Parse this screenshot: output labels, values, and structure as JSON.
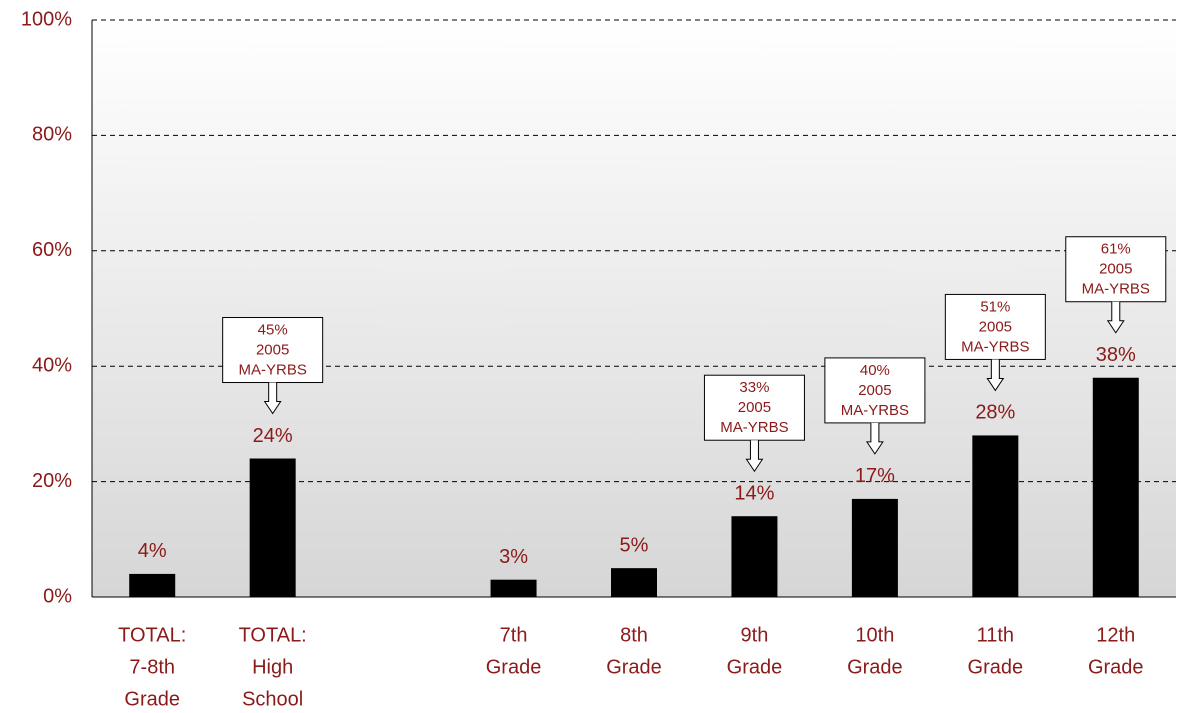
{
  "chart_data": {
    "type": "bar",
    "categories": [
      [
        "TOTAL:",
        "7-8th",
        "Grade"
      ],
      [
        "TOTAL:",
        "High",
        "School"
      ],
      null,
      [
        "7th",
        "Grade"
      ],
      [
        "8th",
        "Grade"
      ],
      [
        "9th",
        "Grade"
      ],
      [
        "10th",
        "Grade"
      ],
      [
        "11th",
        "Grade"
      ],
      [
        "12th",
        "Grade"
      ]
    ],
    "values": [
      4,
      24,
      null,
      3,
      5,
      14,
      17,
      28,
      38
    ],
    "value_labels": [
      "4%",
      "24%",
      null,
      "3%",
      "5%",
      "14%",
      "17%",
      "28%",
      "38%"
    ],
    "comparison_labels": [
      null,
      [
        "45%",
        "2005",
        "MA-YRBS"
      ],
      null,
      null,
      null,
      [
        "33%",
        "2005",
        "MA-YRBS"
      ],
      [
        "40%",
        "2005",
        "MA-YRBS"
      ],
      [
        "51%",
        "2005",
        "MA-YRBS"
      ],
      [
        "61%",
        "2005",
        "MA-YRBS"
      ]
    ],
    "color": "#000000",
    "ylim": [
      0,
      100
    ],
    "yticks": [
      {
        "value": 0,
        "label": "0%"
      },
      {
        "value": 20,
        "label": "20%"
      },
      {
        "value": 40,
        "label": "40%"
      },
      {
        "value": 60,
        "label": "60%"
      },
      {
        "value": 80,
        "label": "80%"
      },
      {
        "value": 100,
        "label": "100%"
      }
    ],
    "grid": true
  }
}
